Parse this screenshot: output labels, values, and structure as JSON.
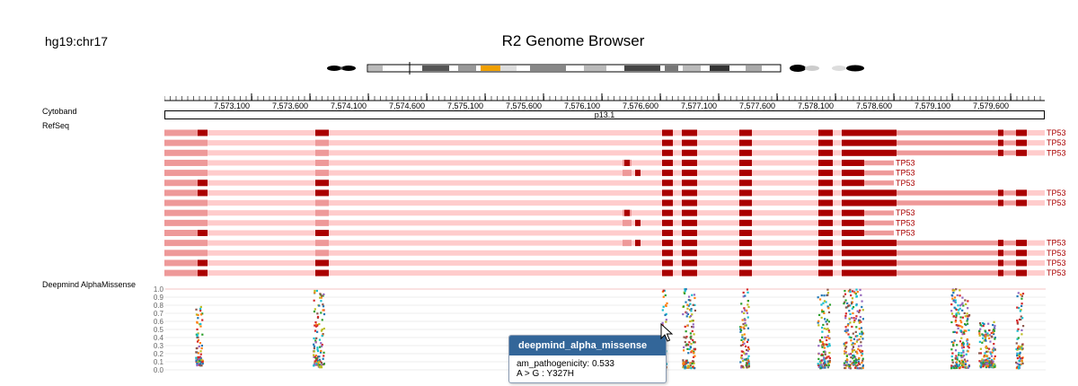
{
  "genome_label": "hg19:chr17",
  "app_title": "R2 Genome Browser",
  "ruler": {
    "ticks": [
      "7,573,100",
      "7,573,600",
      "7,574,100",
      "7,574,600",
      "7,575,100",
      "7,575,600",
      "7,576,100",
      "7,576,600",
      "7,577,100",
      "7,577,600",
      "7,578,100",
      "7,578,600",
      "7,579,100",
      "7,579,600"
    ]
  },
  "tracks": {
    "cytoband_label": "Cytoband",
    "cytoband_band": "p13.1",
    "refseq_label": "RefSeq",
    "missense_label": "Deepmind AlphaMissense"
  },
  "refseq": {
    "gene_name": "TP53",
    "transcripts": [
      {
        "type": "full",
        "first_exon": true
      },
      {
        "type": "full",
        "first_exon": false
      },
      {
        "type": "full",
        "first_exon": false
      },
      {
        "type": "short",
        "first_exon": false,
        "alt": "a"
      },
      {
        "type": "short",
        "first_exon": false,
        "alt": "b"
      },
      {
        "type": "short",
        "first_exon": true,
        "alt": "none"
      },
      {
        "type": "full",
        "first_exon": true
      },
      {
        "type": "full",
        "first_exon": false
      },
      {
        "type": "short",
        "first_exon": false,
        "alt": "a"
      },
      {
        "type": "short",
        "first_exon": false,
        "alt": "b"
      },
      {
        "type": "short",
        "first_exon": true,
        "alt": "none"
      },
      {
        "type": "full",
        "first_exon": false,
        "alt": "c"
      },
      {
        "type": "full",
        "first_exon": false
      },
      {
        "type": "full",
        "first_exon": true
      },
      {
        "type": "full",
        "first_exon": true
      }
    ]
  },
  "chart_data": {
    "type": "scatter",
    "title": "Deepmind AlphaMissense",
    "ylim": [
      0,
      1.0
    ],
    "yticks": [
      "1.0",
      "0.9",
      "0.8",
      "0.7",
      "0.6",
      "0.5",
      "0.4",
      "0.3",
      "0.2",
      "0.1",
      "0.0"
    ],
    "series_colors": [
      "#1f77b4",
      "#2ca02c",
      "#ff7f0e",
      "#17becf",
      "#d62728",
      "#bcbd22",
      "#9467bd",
      "#8c564b"
    ]
  },
  "tooltip": {
    "title": "deepmind_alpha_missense",
    "line1": "am_pathogenicity: 0.533",
    "line2": "A > G : Y327H"
  },
  "colors": {
    "exon": "#aa0000",
    "utr": "#ee9999",
    "intron": "#ffcccc",
    "tooltip_header": "#336699"
  }
}
